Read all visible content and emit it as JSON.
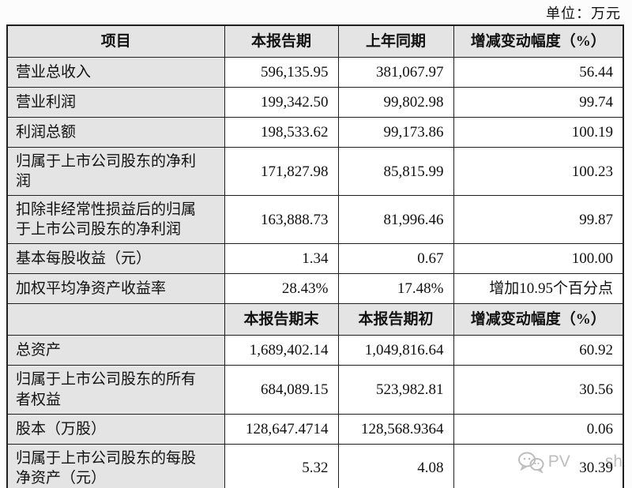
{
  "unit_label": "单位：万元",
  "table": {
    "sections": [
      {
        "headers": [
          "项目",
          "本报告期",
          "上年同期",
          "增减变动幅度（%）"
        ],
        "rows": [
          [
            "营业总收入",
            "596,135.95",
            "381,067.97",
            "56.44"
          ],
          [
            "营业利润",
            "199,342.50",
            "99,802.98",
            "99.74"
          ],
          [
            "利润总额",
            "198,533.62",
            "99,173.86",
            "100.19"
          ],
          [
            "归属于上市公司股东的净利润",
            "171,827.98",
            "85,815.99",
            "100.23"
          ],
          [
            "扣除非经常性损益后的归属于上市公司股东的净利润",
            "163,888.73",
            "81,996.46",
            "99.87"
          ],
          [
            "基本每股收益（元）",
            "1.34",
            "0.67",
            "100.00"
          ],
          [
            "加权平均净资产收益率",
            "28.43%",
            "17.48%",
            "增加10.95个百分点"
          ]
        ]
      },
      {
        "headers": [
          "",
          "本报告期末",
          "本报告期初",
          "增减变动幅度（%）"
        ],
        "rows": [
          [
            "总资产",
            "1,689,402.14",
            "1,049,816.64",
            "60.92"
          ],
          [
            "归属于上市公司股东的所有者权益",
            "684,089.15",
            "523,982.81",
            "30.56"
          ],
          [
            "股本（万股）",
            "128,647.4714",
            "128,568.9364",
            "0.06"
          ],
          [
            "归属于上市公司股东的每股净资产（元）",
            "5.32",
            "4.08",
            "30.39"
          ]
        ]
      }
    ]
  },
  "watermark": {
    "icon": "wechat-chat-bubbles",
    "text_left": "PV",
    "text_right": "sh"
  },
  "colors": {
    "page_bg": "#fcfcfc",
    "header_bg": "#e4e4e4",
    "label_bg": "#e4e4e4",
    "border": "#1f1f1f",
    "text": "#111111",
    "watermark": "#bdbdbd"
  }
}
